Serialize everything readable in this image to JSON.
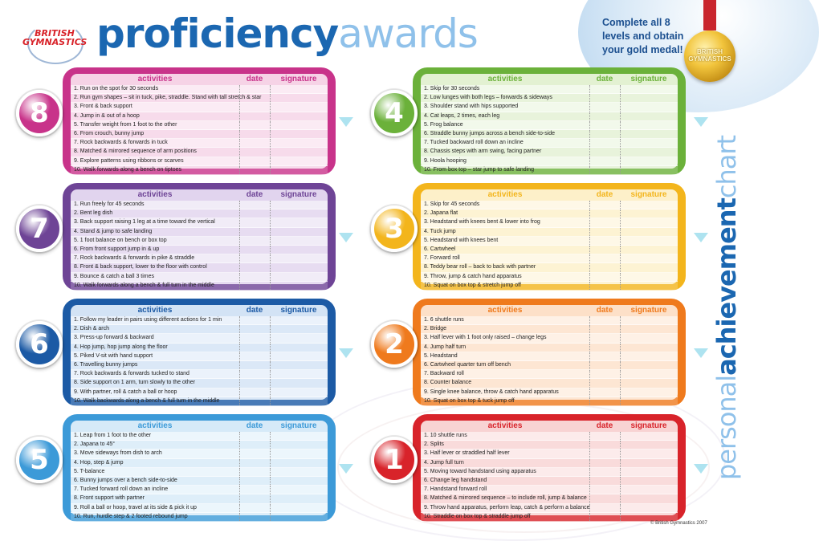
{
  "logo": {
    "brand_line1": "BRITISH",
    "brand_line2": "GYMNASTICS"
  },
  "title": {
    "part1": "proficiency",
    "part2": "awards"
  },
  "medal_text": "Complete all 8 levels and obtain your gold medal!",
  "medal_label_line1": "BRITISH",
  "medal_label_line2": "GYMNASTICS",
  "side_title": {
    "part1": "personal",
    "part2": "achievement",
    "part3": "chart"
  },
  "copyright": "© British Gymnastics 2007",
  "headers": {
    "activities": "activities",
    "date": "date",
    "signature": "signature"
  },
  "levels": [
    {
      "number": "8",
      "color": "#c8338a",
      "light": "#f6d3e6",
      "rows": [
        "1. Run on the spot for 30 seconds",
        "2. Run gym shapes – sit in tuck, pike, straddle. Stand with tall stretch & star",
        "3. Front & back support",
        "4. Jump in & out of a hoop",
        "5. Transfer weight from 1 foot to the other",
        "6. From crouch, bunny jump",
        "7. Rock backwards & forwards in tuck",
        "8. Matched & mirrored sequence of arm positions",
        "9. Explore patterns using ribbons or scarves",
        "10. Walk forwards along a bench on tiptoes"
      ]
    },
    {
      "number": "7",
      "color": "#6e4496",
      "light": "#e1d4ee",
      "rows": [
        "1. Run freely for 45 seconds",
        "2. Bent leg dish",
        "3. Back support raising 1 leg at a time toward the vertical",
        "4. Stand & jump to safe landing",
        "5. 1 foot balance on bench or box top",
        "6. From front support jump in & up",
        "7. Rock backwards & forwards in pike & straddle",
        "8. Front & back support, lower to the floor with control",
        "9. Bounce & catch a ball 3 times",
        "10. Walk forwards along a bench & full turn in the middle"
      ]
    },
    {
      "number": "6",
      "color": "#1c5aa5",
      "light": "#d3e3f5",
      "rows": [
        "1. Follow my leader in pairs using different actions for 1 min",
        "2. Dish & arch",
        "3. Press-up forward & backward",
        "4. Hop jump, hop jump along the floor",
        "5. Piked V-sit with hand support",
        "6. Travelling bunny jumps",
        "7. Rock backwards & forwards tucked to stand",
        "8. Side support on 1 arm, turn slowly to the other",
        "9. With partner, roll & catch a ball or hoop",
        "10. Walk backwards along a bench & full turn in the middle"
      ]
    },
    {
      "number": "5",
      "color": "#3c9ad8",
      "light": "#d6eaf8",
      "rows": [
        "1. Leap from 1 foot to the other",
        "2. Japana to 45°",
        "3. Move sideways from dish to arch",
        "4. Hop, step & jump",
        "5. T-balance",
        "6. Bunny jumps over a bench side-to-side",
        "7. Tucked forward roll down an incline",
        "8. Front support with partner",
        "9. Roll a ball or hoop, travel at its side & pick it up",
        "10. Run, hurdle step & 2 footed rebound jump"
      ]
    },
    {
      "number": "4",
      "color": "#6bb13a",
      "light": "#e3f1d2",
      "rows": [
        "1. Skip for 30 seconds",
        "2. Low lunges with both legs – forwards & sideways",
        "3. Shoulder stand with hips supported",
        "4. Cat leaps, 2 times, each leg",
        "5. Frog balance",
        "6. Straddle bunny jumps across a bench side-to-side",
        "7. Tucked backward roll down an incline",
        "8. Chassis steps with arm swing, facing partner",
        "9. Hoola hooping",
        "10. From box top – star jump to safe landing"
      ]
    },
    {
      "number": "3",
      "color": "#f3b51c",
      "light": "#fdf0c9",
      "rows": [
        "1. Skip for 45 seconds",
        "2. Japana flat",
        "3. Headstand with knees bent & lower into frog",
        "4. Tuck jump",
        "5. Headstand with knees bent",
        "6. Cartwheel",
        "7. Forward roll",
        "8. Teddy bear roll – back to back with partner",
        "9. Throw, jump & catch hand apparatus",
        "10. Squat on box top & stretch jump off"
      ]
    },
    {
      "number": "2",
      "color": "#ef7a1d",
      "light": "#fde0c8",
      "rows": [
        "1. 6 shuttle runs",
        "2. Bridge",
        "3. Half lever with 1 foot only raised – change legs",
        "4. Jump half turn",
        "5. Headstand",
        "6. Cartwheel quarter turn off bench",
        "7. Backward roll",
        "8. Counter balance",
        "9. Single knee balance, throw & catch hand apparatus",
        "10. Squat on box top & tuck jump off"
      ]
    },
    {
      "number": "1",
      "color": "#d8232a",
      "light": "#f8d3d3",
      "rows": [
        "1. 10 shuttle runs",
        "2. Splits",
        "3. Half lever or straddled half lever",
        "4. Jump full turn",
        "5. Moving toward handstand using apparatus",
        "6. Change leg handstand",
        "7. Handstand forward roll",
        "8. Matched & mirrored sequence – to include roll, jump & balance",
        "9. Throw hand apparatus, perform leap, catch & perform a balance",
        "10. Straddle on box top & straddle jump off"
      ]
    }
  ]
}
